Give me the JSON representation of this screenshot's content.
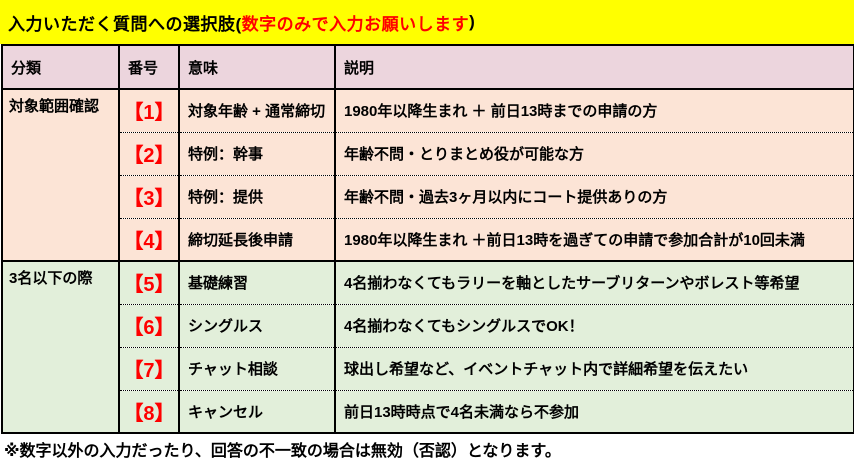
{
  "title": {
    "prefix": "入力いただく質問への選択肢(",
    "highlight": "数字のみで入力お願いします",
    "suffix": ")"
  },
  "colors": {
    "title_bg": "#ffff00",
    "title_highlight": "#ff0000",
    "header_bg": "#ecd5dd",
    "section1_bg": "#fce4d6",
    "section2_bg": "#e2efda",
    "number_color": "#ff0000",
    "border": "#000000"
  },
  "table": {
    "headers": [
      "分類",
      "番号",
      "意味",
      "説明"
    ],
    "sections": [
      {
        "category": "対象範囲確認",
        "bg": "#fce4d6",
        "rows": [
          {
            "number": "【1】",
            "meaning": "対象年齢 + 通常締切",
            "description": "1980年以降生まれ ＋ 前日13時までの申請の方"
          },
          {
            "number": "【2】",
            "meaning": "特例：幹事",
            "description": "年齢不問・とりまとめ役が可能な方"
          },
          {
            "number": "【3】",
            "meaning": "特例：提供",
            "description": "年齢不問・過去3ヶ月以内にコート提供ありの方"
          },
          {
            "number": "【4】",
            "meaning": "締切延長後申請",
            "description": "1980年以降生まれ ＋前日13時を過ぎての申請で参加合計が10回未満"
          }
        ]
      },
      {
        "category": "3名以下の際",
        "bg": "#e2efda",
        "rows": [
          {
            "number": "【5】",
            "meaning": "基礎練習",
            "description": "4名揃わなくてもラリーを軸としたサーブリターンやボレスト等希望"
          },
          {
            "number": "【6】",
            "meaning": "シングルス",
            "description": "4名揃わなくてもシングルスでOK！"
          },
          {
            "number": "【7】",
            "meaning": "チャット相談",
            "description": "球出し希望など、イベントチャット内で詳細希望を伝えたい"
          },
          {
            "number": "【8】",
            "meaning": "キャンセル",
            "description": "前日13時時点で4名未満なら不参加"
          }
        ]
      }
    ]
  },
  "footer": {
    "note": "※数字以外の入力だったり、回答の不一致の場合は無効（否認）となります。"
  }
}
